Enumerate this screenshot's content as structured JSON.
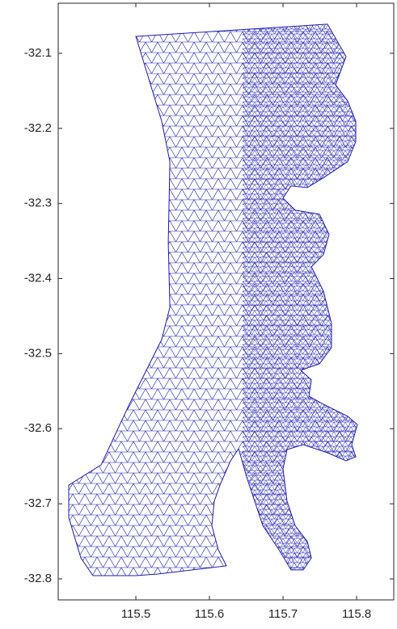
{
  "chart_data": {
    "type": "mesh",
    "color": "#1c1cb0",
    "x": [
      115.5,
      115.7604,
      115.7857,
      115.7714,
      115.7879,
      115.7989,
      115.7989,
      115.7879,
      115.7549,
      115.733,
      115.711,
      115.7,
      115.7165,
      115.7495,
      115.7626,
      115.7549,
      115.7385,
      115.7549,
      115.7659,
      115.7659,
      115.7495,
      115.7242,
      115.7385,
      115.7352,
      115.7549,
      115.7879,
      115.8011,
      115.7934,
      115.7989,
      115.7857,
      115.7604,
      115.7275,
      115.7055,
      115.7,
      115.7055,
      115.7165,
      115.733,
      115.7385,
      115.7275,
      115.711,
      115.6945,
      115.6725,
      115.6615,
      115.6505,
      115.6396,
      115.6286,
      115.6143,
      115.6066,
      115.6033,
      115.6121,
      115.6231,
      115.5297,
      115.5,
      115.4418,
      115.4253,
      115.4088,
      115.4088,
      115.4527,
      115.4912,
      115.5352,
      115.5462,
      115.544,
      115.5462,
      115.5352
    ],
    "y": [
      -32.0774,
      -32.0612,
      -32.1043,
      -32.142,
      -32.1635,
      -32.1905,
      -32.2174,
      -32.2443,
      -32.2658,
      -32.2788,
      -32.2766,
      -32.2928,
      -32.3089,
      -32.3143,
      -32.3412,
      -32.3682,
      -32.3843,
      -32.4166,
      -32.4597,
      -32.492,
      -32.5135,
      -32.5222,
      -32.5351,
      -32.5566,
      -32.5674,
      -32.5835,
      -32.5943,
      -32.6212,
      -32.6374,
      -32.6428,
      -32.632,
      -32.6212,
      -32.6277,
      -32.6535,
      -32.6966,
      -32.7289,
      -32.7504,
      -32.772,
      -32.7881,
      -32.7881,
      -32.7612,
      -32.7289,
      -32.6966,
      -32.6643,
      -32.6266,
      -32.6428,
      -32.6751,
      -32.6966,
      -32.7289,
      -32.7612,
      -32.7827,
      -32.7935,
      -32.7957,
      -32.7957,
      -32.772,
      -32.7181,
      -32.6751,
      -32.6482,
      -32.5674,
      -32.4812,
      -32.4381,
      -32.352,
      -32.2443,
      -32.1905
    ],
    "xlim": [
      115.3945,
      115.8505
    ],
    "ylim": [
      -32.828,
      -32.0333
    ],
    "xticks": [
      115.5,
      115.6,
      115.7,
      115.8
    ],
    "yticks": [
      -32.1,
      -32.2,
      -32.3,
      -32.4,
      -32.5,
      -32.6,
      -32.7,
      -32.8
    ]
  }
}
